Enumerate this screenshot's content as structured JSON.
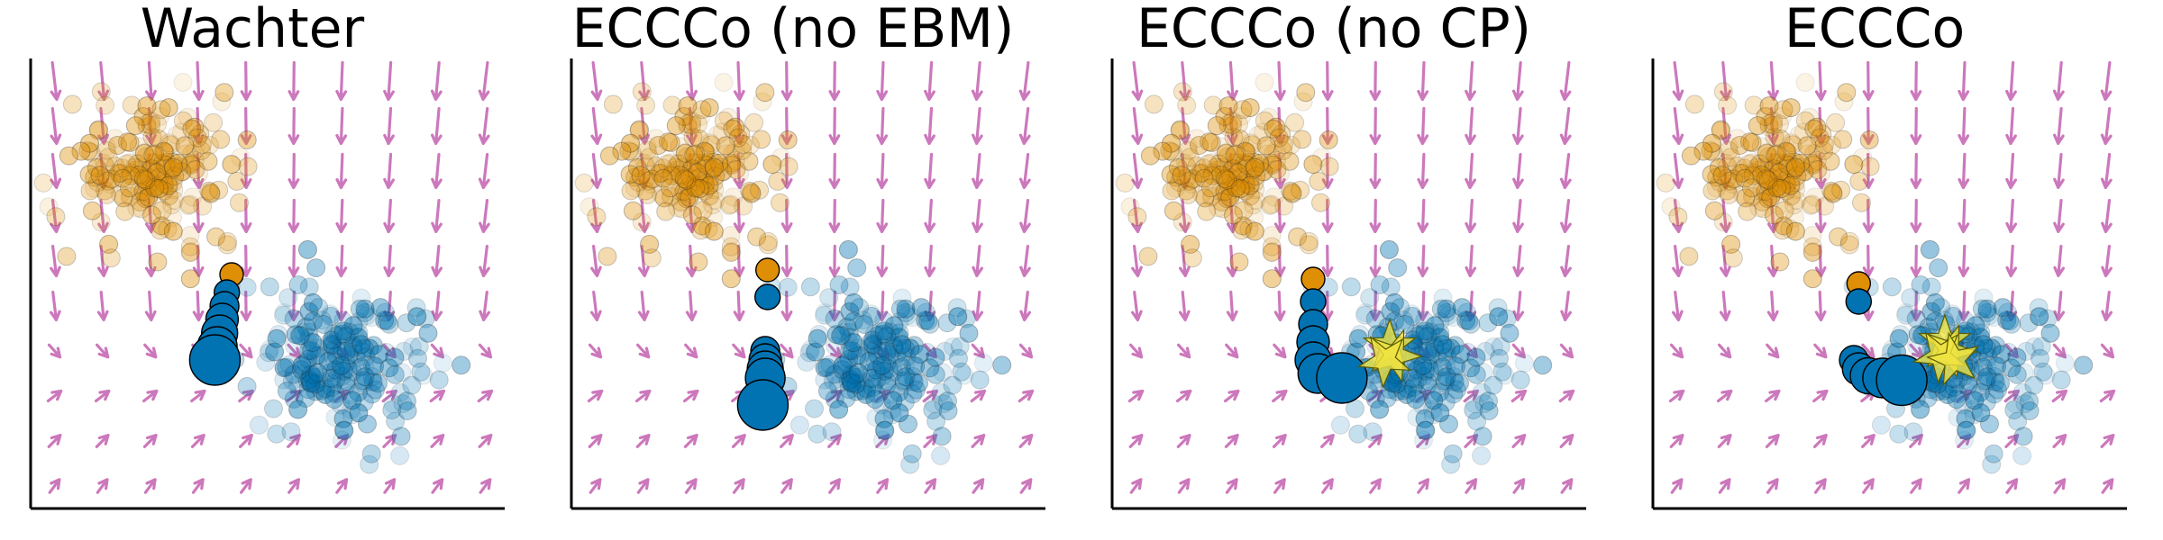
{
  "colors": {
    "factual": "#de8f05",
    "target": "#0173b2",
    "field": "#cc78bc",
    "star": "#f0e442"
  },
  "chart_data": [
    {
      "type": "scatter",
      "title": "Wachter",
      "xlim": [
        0,
        10
      ],
      "ylim": [
        0,
        10
      ],
      "grid": false,
      "legend": "none",
      "path": [
        [
          4.2,
          5.2
        ],
        [
          4.1,
          4.8
        ],
        [
          4.05,
          4.5
        ],
        [
          4.0,
          4.2
        ],
        [
          3.95,
          3.9
        ],
        [
          3.9,
          3.6
        ],
        [
          3.85,
          3.3
        ]
      ],
      "stars": []
    },
    {
      "type": "scatter",
      "title": "ECCCo (no EBM)",
      "xlim": [
        0,
        10
      ],
      "ylim": [
        0,
        10
      ],
      "grid": false,
      "legend": "none",
      "path": [
        [
          4.1,
          5.3
        ],
        [
          4.1,
          4.7
        ],
        [
          4.05,
          3.5
        ],
        [
          4.05,
          3.3
        ],
        [
          4.05,
          3.1
        ],
        [
          4.05,
          2.9
        ],
        [
          4.0,
          2.3
        ]
      ],
      "stars": []
    },
    {
      "type": "scatter",
      "title": "ECCCo (no CP)",
      "xlim": [
        0,
        10
      ],
      "ylim": [
        0,
        10
      ],
      "grid": false,
      "legend": "none",
      "path": [
        [
          4.2,
          5.1
        ],
        [
          4.2,
          4.6
        ],
        [
          4.2,
          4.1
        ],
        [
          4.2,
          3.7
        ],
        [
          4.2,
          3.3
        ],
        [
          4.3,
          3.0
        ],
        [
          4.8,
          2.9
        ]
      ],
      "stars": [
        [
          5.8,
          3.6
        ],
        [
          5.9,
          3.4
        ],
        [
          5.7,
          3.3
        ]
      ]
    },
    {
      "type": "scatter",
      "title": "ECCCo",
      "xlim": [
        0,
        10
      ],
      "ylim": [
        0,
        10
      ],
      "grid": false,
      "legend": "none",
      "path": [
        [
          4.3,
          5.0
        ],
        [
          4.3,
          4.6
        ],
        [
          4.2,
          3.3
        ],
        [
          4.3,
          3.1
        ],
        [
          4.5,
          2.95
        ],
        [
          4.8,
          2.9
        ],
        [
          5.2,
          2.85
        ]
      ],
      "stars": [
        [
          6.1,
          3.7
        ],
        [
          6.2,
          3.5
        ],
        [
          6.0,
          3.4
        ],
        [
          6.3,
          3.3
        ]
      ]
    }
  ]
}
